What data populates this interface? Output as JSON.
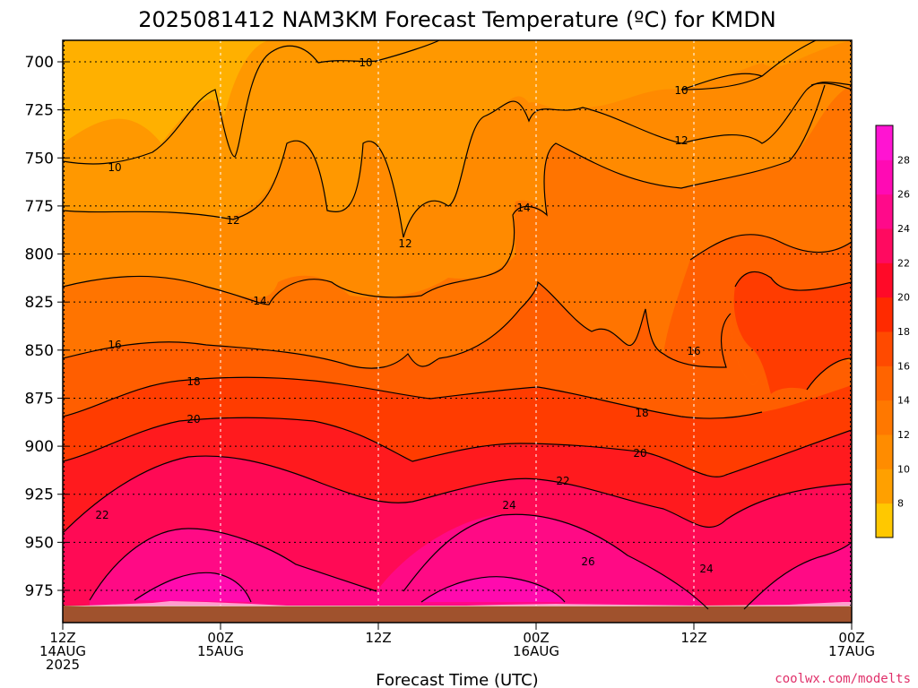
{
  "chart_data": {
    "type": "heatmap",
    "title": "2025081412 NAM3KM Forecast Temperature (ºC) for KMDN",
    "xlabel": "Forecast Time (UTC)",
    "ylabel": "",
    "credit": "coolwx.com/modelts",
    "y_ticks": [
      700,
      725,
      750,
      775,
      800,
      825,
      850,
      875,
      900,
      925,
      950,
      975
    ],
    "ylim": [
      690,
      990
    ],
    "x_ticks": [
      {
        "line1": "12Z",
        "line2": "14AUG",
        "line3": "2025"
      },
      {
        "line1": "00Z",
        "line2": "15AUG",
        "line3": ""
      },
      {
        "line1": "12Z",
        "line2": "",
        "line3": ""
      },
      {
        "line1": "00Z",
        "line2": "16AUG",
        "line3": ""
      },
      {
        "line1": "12Z",
        "line2": "",
        "line3": ""
      },
      {
        "line1": "00Z",
        "line2": "17AUG",
        "line3": ""
      }
    ],
    "grid": true,
    "colorbar": {
      "ticks": [
        8,
        10,
        12,
        14,
        16,
        18,
        20,
        22,
        24,
        26,
        28
      ],
      "colors": [
        "#ffc800",
        "#ffa000",
        "#ff8c00",
        "#ff7800",
        "#ff6400",
        "#ff4a00",
        "#ff2a00",
        "#ff0a28",
        "#ff0a60",
        "#ff0a8a",
        "#ff0ab4",
        "#ff14d2"
      ]
    },
    "ground_color": "#a0522d",
    "contours": [
      {
        "level": 10,
        "label": "10"
      },
      {
        "level": 12,
        "label": "12"
      },
      {
        "level": 14,
        "label": "14"
      },
      {
        "level": 16,
        "label": "16"
      },
      {
        "level": 18,
        "label": "18"
      },
      {
        "level": 20,
        "label": "20"
      },
      {
        "level": 22,
        "label": "22"
      },
      {
        "level": 24,
        "label": "24"
      },
      {
        "level": 26,
        "label": "26"
      }
    ]
  }
}
